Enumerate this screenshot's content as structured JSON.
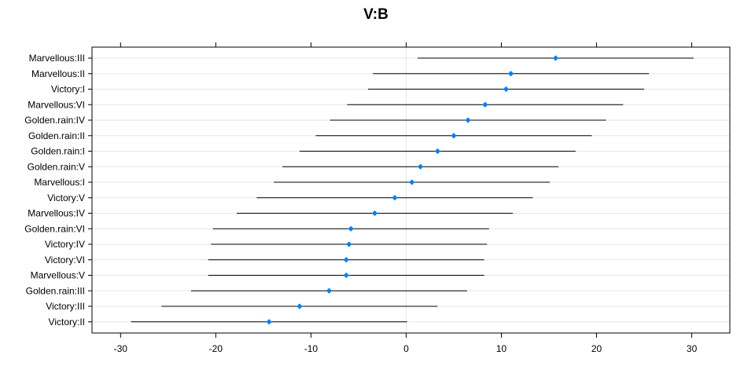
{
  "chart_data": {
    "type": "dotplot-interval",
    "title": "V:B",
    "xlabel": "",
    "ylabel": "",
    "xlim": [
      -33,
      34
    ],
    "xticks": [
      -30,
      -20,
      -10,
      0,
      10,
      20,
      30
    ],
    "grid": true,
    "point_color": "#0080ff",
    "line_color": "#000000",
    "grid_color": "#e6e6e6",
    "rows": [
      {
        "label": "Marvellous:III",
        "estimate": 15.7,
        "lower": 1.2,
        "upper": 30.2
      },
      {
        "label": "Marvellous:II",
        "estimate": 11.0,
        "lower": -3.5,
        "upper": 25.5
      },
      {
        "label": "Victory:I",
        "estimate": 10.5,
        "lower": -4.0,
        "upper": 25.0
      },
      {
        "label": "Marvellous:VI",
        "estimate": 8.3,
        "lower": -6.2,
        "upper": 22.8
      },
      {
        "label": "Golden.rain:IV",
        "estimate": 6.5,
        "lower": -8.0,
        "upper": 21.0
      },
      {
        "label": "Golden.rain:II",
        "estimate": 5.0,
        "lower": -9.5,
        "upper": 19.5
      },
      {
        "label": "Golden.rain:I",
        "estimate": 3.3,
        "lower": -11.2,
        "upper": 17.8
      },
      {
        "label": "Golden.rain:V",
        "estimate": 1.5,
        "lower": -13.0,
        "upper": 16.0
      },
      {
        "label": "Marvellous:I",
        "estimate": 0.6,
        "lower": -13.9,
        "upper": 15.1
      },
      {
        "label": "Victory:V",
        "estimate": -1.2,
        "lower": -15.7,
        "upper": 13.3
      },
      {
        "label": "Marvellous:IV",
        "estimate": -3.3,
        "lower": -17.8,
        "upper": 11.2
      },
      {
        "label": "Golden.rain:VI",
        "estimate": -5.8,
        "lower": -20.3,
        "upper": 8.7
      },
      {
        "label": "Victory:IV",
        "estimate": -6.0,
        "lower": -20.5,
        "upper": 8.5
      },
      {
        "label": "Victory:VI",
        "estimate": -6.3,
        "lower": -20.8,
        "upper": 8.2
      },
      {
        "label": "Marvellous:V",
        "estimate": -6.3,
        "lower": -20.8,
        "upper": 8.2
      },
      {
        "label": "Golden.rain:III",
        "estimate": -8.1,
        "lower": -22.6,
        "upper": 6.4
      },
      {
        "label": "Victory:III",
        "estimate": -11.2,
        "lower": -25.7,
        "upper": 3.3
      },
      {
        "label": "Victory:II",
        "estimate": -14.4,
        "lower": -28.9,
        "upper": 0.1
      }
    ]
  }
}
